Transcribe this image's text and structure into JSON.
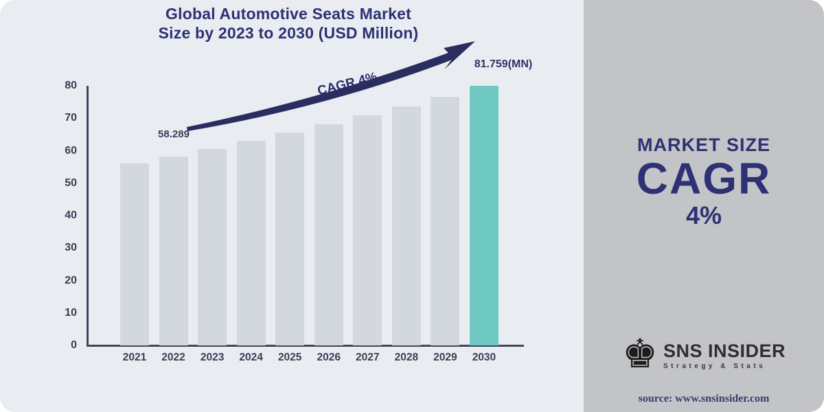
{
  "chart_data": {
    "type": "bar",
    "title": "Global Automotive Seats Market Size by 2023 to 2030 (USD Million)",
    "title_lines": [
      "Global Automotive Seats Market",
      "Size by 2023 to 2030 (USD Million)"
    ],
    "categories": [
      "2021",
      "2022",
      "2023",
      "2024",
      "2025",
      "2026",
      "2027",
      "2028",
      "2029",
      "2030"
    ],
    "values": [
      56.05,
      58.289,
      60.62,
      63.05,
      65.57,
      68.19,
      70.92,
      73.75,
      76.7,
      81.759
    ],
    "highlight_index": 9,
    "ylim": [
      0,
      80
    ],
    "ytick_step": 10,
    "xlabel": "",
    "ylabel": "",
    "grid": false,
    "legend": false,
    "annotations": {
      "value_2022_label": "58.289",
      "value_2030_label": "81.759(MN)",
      "trend_label": "CAGR 4%"
    },
    "colors": {
      "bar": "#d2d8dd",
      "highlight_bar": "#6fc9c3",
      "axis": "#42445c",
      "title_text": "#2e3173",
      "arrow": "#2b2d5f",
      "chart_background": "#e9edf2",
      "panel_background": "#c3c4c7"
    }
  },
  "side_panel": {
    "heading": "MARKET SIZE",
    "big_label": "CAGR",
    "big_value": "4%",
    "logo": {
      "icon": "chess-king-icon",
      "brand": "SNS INSIDER",
      "tagline": "Strategy & Stats"
    },
    "source_text": "source: www.snsinsider.com"
  }
}
